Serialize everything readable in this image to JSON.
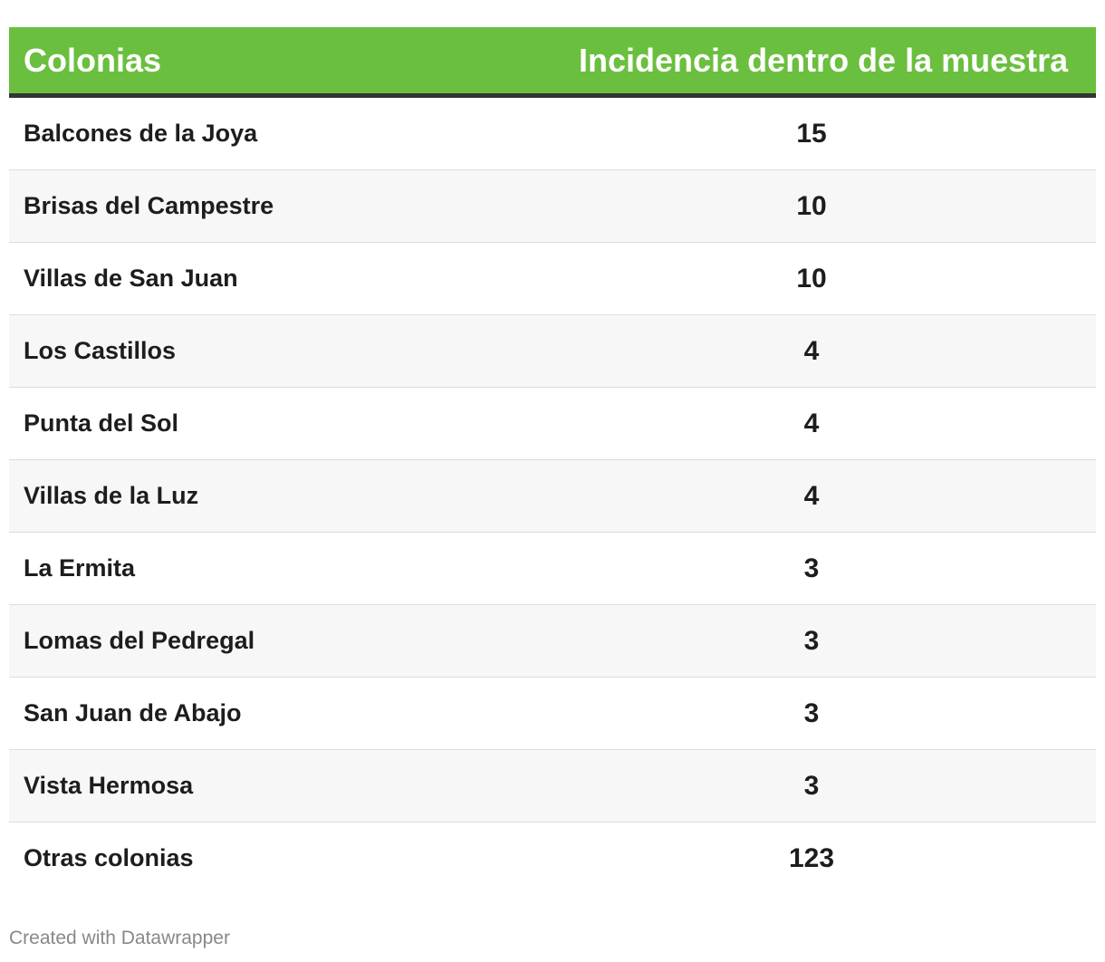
{
  "chart_data": {
    "type": "table",
    "columns": [
      "Colonias",
      "Incidencia dentro de la muestra"
    ],
    "rows": [
      {
        "name": "Balcones de la Joya",
        "value": "15"
      },
      {
        "name": "Brisas del Campestre",
        "value": "10"
      },
      {
        "name": "Villas de San Juan",
        "value": "10"
      },
      {
        "name": "Los Castillos",
        "value": "4"
      },
      {
        "name": "Punta del Sol",
        "value": "4"
      },
      {
        "name": "Villas de la Luz",
        "value": "4"
      },
      {
        "name": "La Ermita",
        "value": "3"
      },
      {
        "name": "Lomas del Pedregal",
        "value": "3"
      },
      {
        "name": "San Juan de Abajo",
        "value": "3"
      },
      {
        "name": "Vista Hermosa",
        "value": "3"
      },
      {
        "name": "Otras colonias",
        "value": "123"
      }
    ],
    "header_color": "#6abf3e",
    "header_text_color": "#ffffff",
    "stripe_color": "#f7f7f7"
  },
  "footer": {
    "credit": "Created with Datawrapper"
  }
}
